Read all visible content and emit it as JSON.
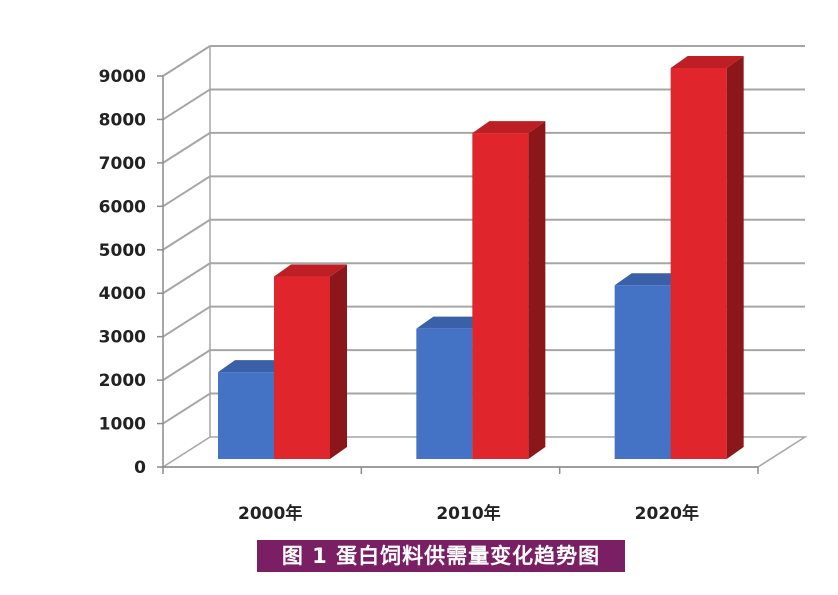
{
  "caption": "图 1  蛋白饲料供需量变化趋势图",
  "chart_data": {
    "type": "bar",
    "title": "",
    "xlabel": "",
    "ylabel": "",
    "categories": [
      "2000年",
      "2010年",
      "2020年"
    ],
    "series": [
      {
        "values": [
          2000,
          3000,
          4000
        ],
        "color": "#4472c4"
      },
      {
        "values": [
          4200,
          7500,
          9000
        ],
        "color": "#e0252c"
      }
    ],
    "ylim": [
      0,
      9000
    ],
    "yticks": [
      "0",
      "1000",
      "2000",
      "3000",
      "4000",
      "5000",
      "6000",
      "7000",
      "8000",
      "9000"
    ],
    "grid": true,
    "legend": "none",
    "style": "3d"
  }
}
